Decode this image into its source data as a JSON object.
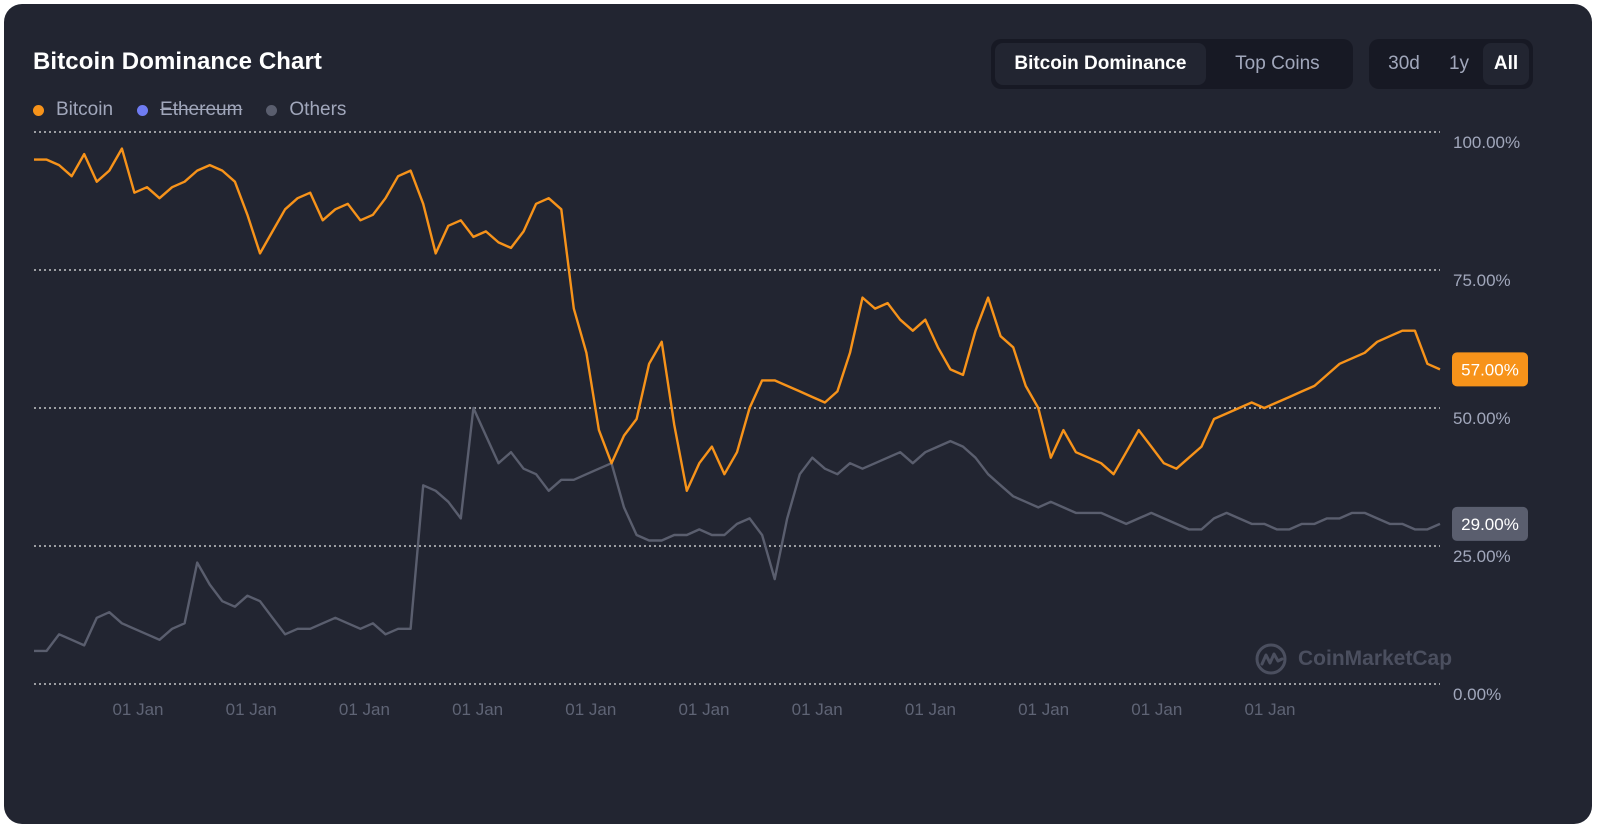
{
  "title": "Bitcoin Dominance Chart",
  "legend": [
    {
      "label": "Bitcoin",
      "color": "#f7931a",
      "enabled": true
    },
    {
      "label": "Ethereum",
      "color": "#6f7cf2",
      "enabled": false
    },
    {
      "label": "Others",
      "color": "#5a5e6e",
      "enabled": true
    }
  ],
  "view_tabs": [
    {
      "label": "Bitcoin Dominance",
      "active": true
    },
    {
      "label": "Top Coins",
      "active": false
    }
  ],
  "range_tabs": [
    {
      "label": "30d",
      "active": false
    },
    {
      "label": "1y",
      "active": false
    },
    {
      "label": "All",
      "active": true
    }
  ],
  "watermark": "CoinMarketCap",
  "colors": {
    "background": "#222531",
    "bitcoin": "#f7931a",
    "others": "#5a5e6e",
    "grid": "#e0e0e0",
    "axis_text": "#a1a7bb"
  },
  "chart_data": {
    "type": "line",
    "title": "Bitcoin Dominance Chart",
    "ylim": [
      0,
      100
    ],
    "y_ticks": [
      "100.00%",
      "75.00%",
      "50.00%",
      "25.00%",
      "0.00%"
    ],
    "y_tick_values": [
      100,
      75,
      50,
      25,
      0
    ],
    "x_ticks": [
      "01 Jan",
      "01 Jan",
      "01 Jan",
      "01 Jan",
      "01 Jan",
      "01 Jan",
      "01 Jan",
      "01 Jan",
      "01 Jan",
      "01 Jan",
      "01 Jan"
    ],
    "grid": true,
    "legend_position": "top-left",
    "series": [
      {
        "name": "Bitcoin",
        "color": "#f7931a",
        "last_value_label": "57.00%",
        "values": [
          95,
          95,
          94,
          92,
          96,
          91,
          93,
          97,
          89,
          90,
          88,
          90,
          91,
          93,
          94,
          93,
          91,
          85,
          78,
          82,
          86,
          88,
          89,
          84,
          86,
          87,
          84,
          85,
          88,
          92,
          93,
          87,
          78,
          83,
          84,
          81,
          82,
          80,
          79,
          82,
          87,
          88,
          86,
          68,
          60,
          46,
          40,
          45,
          48,
          58,
          62,
          47,
          35,
          40,
          43,
          38,
          42,
          50,
          55,
          55,
          54,
          53,
          52,
          51,
          53,
          60,
          70,
          68,
          69,
          66,
          64,
          66,
          61,
          57,
          56,
          64,
          70,
          63,
          61,
          54,
          50,
          41,
          46,
          42,
          41,
          40,
          38,
          42,
          46,
          43,
          40,
          39,
          41,
          43,
          48,
          49,
          50,
          51,
          50,
          51,
          52,
          53,
          54,
          56,
          58,
          59,
          60,
          62,
          63,
          64,
          64,
          58,
          57
        ],
        "note_x": "monthly-ish samples from the first visible date to the latest point"
      },
      {
        "name": "Others",
        "color": "#5a5e6e",
        "last_value_label": "29.00%",
        "values": [
          6,
          6,
          9,
          8,
          7,
          12,
          13,
          11,
          10,
          9,
          8,
          10,
          11,
          22,
          18,
          15,
          14,
          16,
          15,
          12,
          9,
          10,
          10,
          11,
          12,
          11,
          10,
          11,
          9,
          10,
          10,
          36,
          35,
          33,
          30,
          50,
          45,
          40,
          42,
          39,
          38,
          35,
          37,
          37,
          38,
          39,
          40,
          32,
          27,
          26,
          26,
          27,
          27,
          28,
          27,
          27,
          29,
          30,
          27,
          19,
          30,
          38,
          41,
          39,
          38,
          40,
          39,
          40,
          41,
          42,
          40,
          42,
          43,
          44,
          43,
          41,
          38,
          36,
          34,
          33,
          32,
          33,
          32,
          31,
          31,
          31,
          30,
          29,
          30,
          31,
          30,
          29,
          28,
          28,
          30,
          31,
          30,
          29,
          29,
          28,
          28,
          29,
          29,
          30,
          30,
          31,
          31,
          30,
          29,
          29,
          28,
          28,
          29
        ]
      }
    ]
  }
}
